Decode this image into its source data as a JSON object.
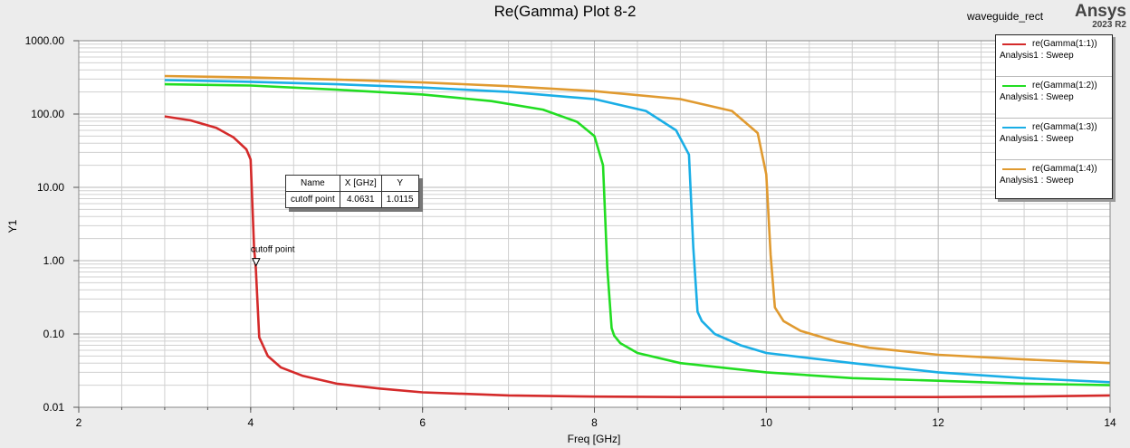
{
  "header": {
    "title": "Re(Gamma) Plot 8-2",
    "design_name": "waveguide_rect",
    "brand": "Ansys",
    "version": "2023 R2"
  },
  "colors": {
    "plot_bg": "#ffffff",
    "page_bg": "#ececec",
    "grid": "#d0d0d0",
    "grid_major": "#b8b8b8"
  },
  "chart_data": {
    "type": "line",
    "title": "Re(Gamma) Plot 8-2",
    "xlabel": "Freq [GHz]",
    "ylabel": "Y1",
    "xlim": [
      2,
      14
    ],
    "ylim": [
      0.01,
      1000
    ],
    "yscale": "log",
    "grid": true,
    "legend_position": "top-right",
    "x_ticks": [
      "2",
      "4",
      "6",
      "8",
      "10",
      "12",
      "14"
    ],
    "y_ticks": [
      "0.01",
      "0.10",
      "1.00",
      "10.00",
      "100.00",
      "1000.00"
    ],
    "series": [
      {
        "name": "re(Gamma(1:1))",
        "sub": "Analysis1 : Sweep",
        "color": "#d42a2a",
        "x": [
          3.0,
          3.3,
          3.6,
          3.8,
          3.95,
          4.0,
          4.02,
          4.04,
          4.06,
          4.1,
          4.2,
          4.35,
          4.6,
          5.0,
          5.5,
          6.0,
          7.0,
          8.0,
          9.0,
          10.0,
          11.0,
          12.0,
          13.0,
          14.0
        ],
        "y": [
          93,
          82,
          65,
          48,
          33,
          24,
          6,
          1.5,
          0.8,
          0.09,
          0.05,
          0.035,
          0.027,
          0.021,
          0.018,
          0.016,
          0.0145,
          0.014,
          0.0138,
          0.0138,
          0.0138,
          0.0138,
          0.014,
          0.0145
        ]
      },
      {
        "name": "re(Gamma(1:2))",
        "sub": "Analysis1 : Sweep",
        "color": "#22dd22",
        "x": [
          3.0,
          4.0,
          5.0,
          6.0,
          6.8,
          7.4,
          7.8,
          8.0,
          8.1,
          8.15,
          8.2,
          8.23,
          8.3,
          8.5,
          9.0,
          10.0,
          11.0,
          12.0,
          13.0,
          14.0
        ],
        "y": [
          255,
          245,
          215,
          185,
          150,
          115,
          78,
          50,
          20,
          0.8,
          0.12,
          0.095,
          0.075,
          0.055,
          0.04,
          0.03,
          0.025,
          0.023,
          0.021,
          0.02
        ]
      },
      {
        "name": "re(Gamma(1:3))",
        "sub": "Analysis1 : Sweep",
        "color": "#1aaee6",
        "x": [
          3.0,
          4.0,
          5.0,
          6.0,
          7.0,
          8.0,
          8.6,
          8.95,
          9.1,
          9.15,
          9.2,
          9.25,
          9.4,
          9.7,
          10.0,
          11.0,
          12.0,
          13.0,
          14.0
        ],
        "y": [
          290,
          275,
          255,
          230,
          200,
          160,
          110,
          60,
          28,
          1.5,
          0.2,
          0.15,
          0.1,
          0.07,
          0.055,
          0.04,
          0.03,
          0.025,
          0.022
        ]
      },
      {
        "name": "re(Gamma(1:4))",
        "sub": "Analysis1 : Sweep",
        "color": "#e09a30",
        "x": [
          3.0,
          4.0,
          5.0,
          6.0,
          7.0,
          8.0,
          9.0,
          9.6,
          9.9,
          10.0,
          10.05,
          10.1,
          10.2,
          10.4,
          10.8,
          11.2,
          12.0,
          13.0,
          14.0
        ],
        "y": [
          330,
          315,
          295,
          270,
          240,
          205,
          160,
          110,
          55,
          15,
          1.2,
          0.23,
          0.15,
          0.11,
          0.08,
          0.065,
          0.052,
          0.045,
          0.04
        ]
      }
    ]
  },
  "marker": {
    "label": "cutoff point",
    "x": 4.0631,
    "y": 1.0115,
    "headers": [
      "Name",
      "X [GHz]",
      "Y"
    ],
    "row": [
      "cutoff point",
      "4.0631",
      "1.0115"
    ]
  }
}
